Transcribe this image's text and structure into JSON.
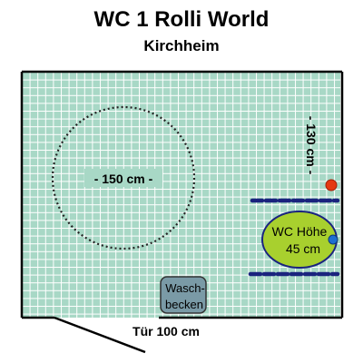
{
  "header": {
    "title": "WC 1 Rolli World",
    "subtitle": "Kirchheim"
  },
  "plan": {
    "turning_circle_label": "- 150 cm -",
    "side_width_label": "- 130 cm -",
    "wc_label_line1": "WC Höhe",
    "wc_label_line2": "45 cm",
    "sink_label_line1": "Wasch-",
    "sink_label_line2": "becken",
    "door_label": "Tür 100 cm"
  },
  "colors": {
    "tile_background": "#a8d8c6",
    "tile_grout": "#ffffff",
    "wall": "#000000",
    "grab_bar": "#1a237e",
    "toilet": "#a8d02e",
    "sink": "#7a9aa6",
    "flush_button": "#e53912",
    "accent_blue": "#1e6fd0"
  }
}
